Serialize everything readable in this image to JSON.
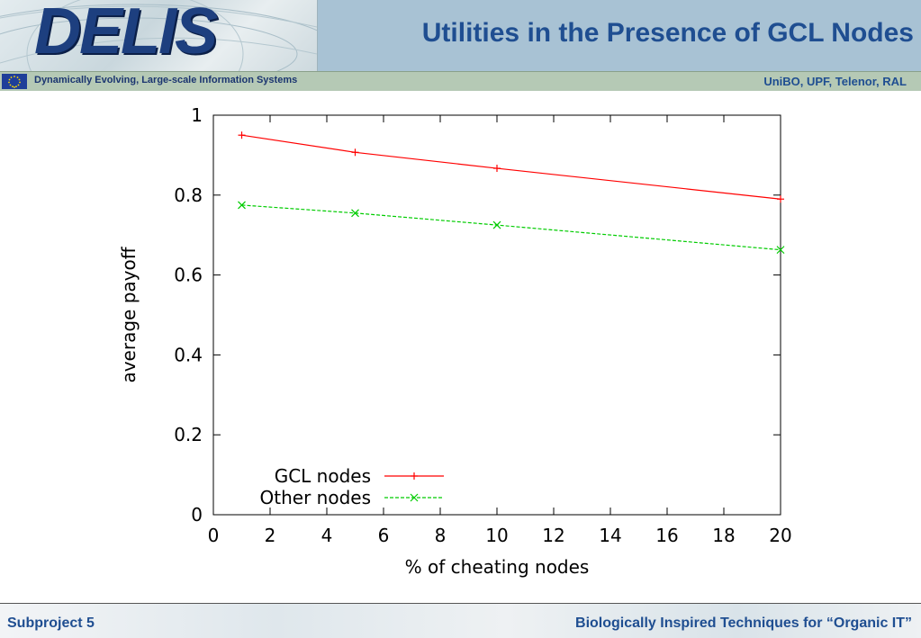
{
  "header": {
    "logo_text": "DELIS",
    "title": "Utilities in the Presence of GCL Nodes",
    "tagline": "Dynamically Evolving, Large-scale Information Systems",
    "partners": "UniBO, UPF, Telenor, RAL"
  },
  "footer": {
    "left": "Subproject 5",
    "right": "Biologically Inspired Techniques for “Organic IT”"
  },
  "colors": {
    "title_blue": "#1f4e91",
    "gcl_series": "#ff0000",
    "other_series": "#00cc00"
  },
  "chart_data": {
    "type": "line",
    "xlabel": "% of cheating nodes",
    "ylabel": "average payoff",
    "xlim": [
      0,
      20
    ],
    "ylim": [
      0,
      1
    ],
    "xticks": [
      0,
      2,
      4,
      6,
      8,
      10,
      12,
      14,
      16,
      18,
      20
    ],
    "yticks": [
      0,
      0.2,
      0.4,
      0.6,
      0.8,
      1
    ],
    "ytick_labels": [
      "0",
      "0.2",
      "0.4",
      "0.6",
      "0.8",
      "1"
    ],
    "grid": false,
    "legend_position": "bottom-left",
    "series": [
      {
        "name": "GCL nodes",
        "marker": "+",
        "dash": "solid",
        "color": "#ff0000",
        "x": [
          1,
          5,
          10,
          20
        ],
        "y": [
          0.95,
          0.907,
          0.867,
          0.79
        ]
      },
      {
        "name": "Other nodes",
        "marker": "x",
        "dash": "dashed",
        "color": "#00cc00",
        "x": [
          1,
          5,
          10,
          20
        ],
        "y": [
          0.775,
          0.755,
          0.725,
          0.663
        ]
      }
    ]
  }
}
